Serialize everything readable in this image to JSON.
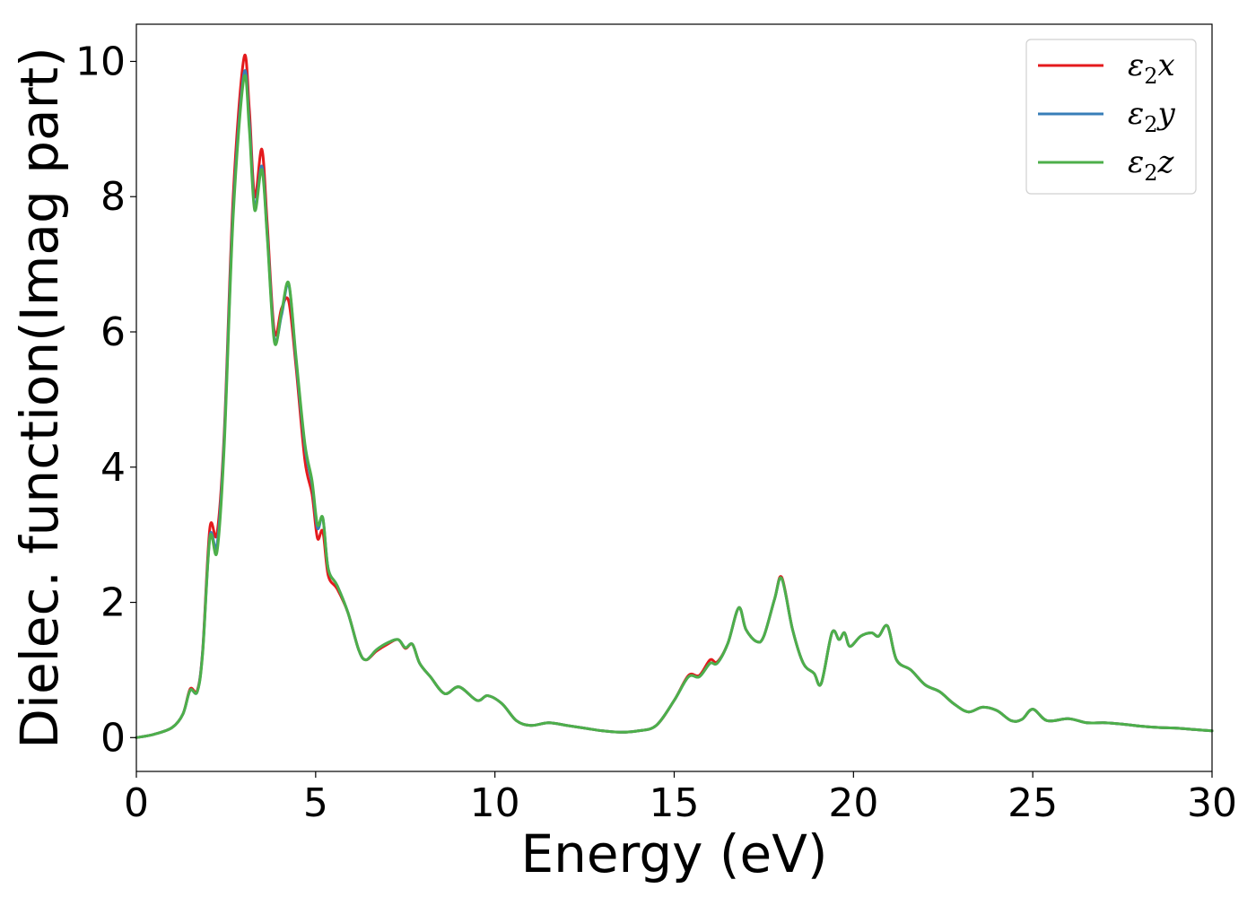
{
  "chart_data": {
    "type": "line",
    "xlabel": "Energy (eV)",
    "ylabel": "Dielec. function(Imag part)",
    "xlim": [
      0,
      30
    ],
    "ylim": [
      -0.5,
      10.55
    ],
    "xticks": [
      0,
      5,
      10,
      15,
      20,
      25,
      30
    ],
    "yticks": [
      0,
      2,
      4,
      6,
      8,
      10
    ],
    "grid": false,
    "legend_position": "top-right",
    "series": [
      {
        "name": "ε2x",
        "legend": {
          "base": "ε",
          "sub": "2",
          "suffix": "x"
        },
        "color": "#e41a1c",
        "points": [
          [
            0,
            0
          ],
          [
            0.5,
            0.05
          ],
          [
            1.0,
            0.15
          ],
          [
            1.3,
            0.35
          ],
          [
            1.5,
            0.72
          ],
          [
            1.7,
            0.7
          ],
          [
            1.85,
            1.3
          ],
          [
            2.05,
            3.1
          ],
          [
            2.25,
            3.02
          ],
          [
            2.45,
            4.5
          ],
          [
            2.7,
            8.0
          ],
          [
            3.0,
            10.05
          ],
          [
            3.15,
            9.3
          ],
          [
            3.3,
            8.0
          ],
          [
            3.5,
            8.7
          ],
          [
            3.65,
            7.6
          ],
          [
            3.85,
            6.0
          ],
          [
            4.05,
            6.35
          ],
          [
            4.25,
            6.45
          ],
          [
            4.45,
            5.5
          ],
          [
            4.7,
            4.1
          ],
          [
            4.9,
            3.6
          ],
          [
            5.05,
            2.95
          ],
          [
            5.2,
            3.05
          ],
          [
            5.35,
            2.4
          ],
          [
            5.6,
            2.2
          ],
          [
            5.9,
            1.85
          ],
          [
            6.2,
            1.3
          ],
          [
            6.4,
            1.15
          ],
          [
            6.7,
            1.28
          ],
          [
            7.0,
            1.38
          ],
          [
            7.3,
            1.45
          ],
          [
            7.5,
            1.32
          ],
          [
            7.7,
            1.38
          ],
          [
            7.9,
            1.1
          ],
          [
            8.2,
            0.9
          ],
          [
            8.6,
            0.65
          ],
          [
            9.0,
            0.75
          ],
          [
            9.5,
            0.55
          ],
          [
            9.8,
            0.62
          ],
          [
            10.2,
            0.5
          ],
          [
            10.6,
            0.25
          ],
          [
            11.0,
            0.18
          ],
          [
            11.5,
            0.22
          ],
          [
            12.0,
            0.18
          ],
          [
            12.5,
            0.14
          ],
          [
            13.0,
            0.1
          ],
          [
            13.5,
            0.08
          ],
          [
            14.0,
            0.1
          ],
          [
            14.5,
            0.18
          ],
          [
            15.0,
            0.55
          ],
          [
            15.4,
            0.92
          ],
          [
            15.7,
            0.92
          ],
          [
            16.0,
            1.15
          ],
          [
            16.2,
            1.12
          ],
          [
            16.5,
            1.4
          ],
          [
            16.8,
            1.92
          ],
          [
            17.0,
            1.6
          ],
          [
            17.3,
            1.42
          ],
          [
            17.5,
            1.5
          ],
          [
            17.8,
            2.05
          ],
          [
            18.0,
            2.37
          ],
          [
            18.3,
            1.6
          ],
          [
            18.6,
            1.1
          ],
          [
            18.9,
            0.95
          ],
          [
            19.1,
            0.8
          ],
          [
            19.4,
            1.55
          ],
          [
            19.6,
            1.45
          ],
          [
            19.75,
            1.55
          ],
          [
            19.9,
            1.35
          ],
          [
            20.2,
            1.5
          ],
          [
            20.5,
            1.55
          ],
          [
            20.7,
            1.5
          ],
          [
            20.95,
            1.65
          ],
          [
            21.2,
            1.15
          ],
          [
            21.6,
            1.0
          ],
          [
            22.0,
            0.78
          ],
          [
            22.4,
            0.68
          ],
          [
            22.8,
            0.5
          ],
          [
            23.2,
            0.38
          ],
          [
            23.6,
            0.45
          ],
          [
            24.0,
            0.4
          ],
          [
            24.4,
            0.25
          ],
          [
            24.7,
            0.27
          ],
          [
            25.0,
            0.42
          ],
          [
            25.4,
            0.25
          ],
          [
            26.0,
            0.28
          ],
          [
            26.5,
            0.22
          ],
          [
            27.0,
            0.22
          ],
          [
            27.5,
            0.2
          ],
          [
            28.0,
            0.17
          ],
          [
            28.5,
            0.15
          ],
          [
            29.0,
            0.14
          ],
          [
            29.5,
            0.12
          ],
          [
            30.0,
            0.1
          ]
        ]
      },
      {
        "name": "ε2y",
        "legend": {
          "base": "ε",
          "sub": "2",
          "suffix": "y"
        },
        "color": "#377eb8",
        "points": [
          [
            0,
            0
          ],
          [
            0.5,
            0.05
          ],
          [
            1.0,
            0.15
          ],
          [
            1.3,
            0.35
          ],
          [
            1.5,
            0.7
          ],
          [
            1.7,
            0.68
          ],
          [
            1.85,
            1.28
          ],
          [
            2.05,
            2.97
          ],
          [
            2.25,
            2.85
          ],
          [
            2.45,
            4.4
          ],
          [
            2.7,
            7.8
          ],
          [
            3.0,
            9.82
          ],
          [
            3.15,
            9.1
          ],
          [
            3.3,
            7.85
          ],
          [
            3.5,
            8.45
          ],
          [
            3.65,
            7.45
          ],
          [
            3.85,
            5.9
          ],
          [
            4.05,
            6.25
          ],
          [
            4.25,
            6.7
          ],
          [
            4.45,
            5.6
          ],
          [
            4.7,
            4.3
          ],
          [
            4.9,
            3.75
          ],
          [
            5.05,
            3.1
          ],
          [
            5.2,
            3.25
          ],
          [
            5.35,
            2.5
          ],
          [
            5.6,
            2.25
          ],
          [
            5.9,
            1.85
          ],
          [
            6.2,
            1.3
          ],
          [
            6.4,
            1.15
          ],
          [
            6.7,
            1.3
          ],
          [
            7.0,
            1.4
          ],
          [
            7.3,
            1.45
          ],
          [
            7.5,
            1.33
          ],
          [
            7.7,
            1.38
          ],
          [
            7.9,
            1.1
          ],
          [
            8.2,
            0.9
          ],
          [
            8.6,
            0.65
          ],
          [
            9.0,
            0.75
          ],
          [
            9.5,
            0.55
          ],
          [
            9.8,
            0.62
          ],
          [
            10.2,
            0.5
          ],
          [
            10.6,
            0.25
          ],
          [
            11.0,
            0.18
          ],
          [
            11.5,
            0.22
          ],
          [
            12.0,
            0.18
          ],
          [
            12.5,
            0.14
          ],
          [
            13.0,
            0.1
          ],
          [
            13.5,
            0.08
          ],
          [
            14.0,
            0.1
          ],
          [
            14.5,
            0.18
          ],
          [
            15.0,
            0.55
          ],
          [
            15.4,
            0.9
          ],
          [
            15.7,
            0.9
          ],
          [
            16.0,
            1.1
          ],
          [
            16.2,
            1.1
          ],
          [
            16.5,
            1.4
          ],
          [
            16.8,
            1.92
          ],
          [
            17.0,
            1.6
          ],
          [
            17.3,
            1.42
          ],
          [
            17.5,
            1.5
          ],
          [
            17.8,
            2.05
          ],
          [
            18.0,
            2.35
          ],
          [
            18.3,
            1.6
          ],
          [
            18.6,
            1.1
          ],
          [
            18.9,
            0.95
          ],
          [
            19.1,
            0.8
          ],
          [
            19.4,
            1.55
          ],
          [
            19.6,
            1.45
          ],
          [
            19.75,
            1.55
          ],
          [
            19.9,
            1.35
          ],
          [
            20.2,
            1.5
          ],
          [
            20.5,
            1.55
          ],
          [
            20.7,
            1.5
          ],
          [
            20.95,
            1.65
          ],
          [
            21.2,
            1.15
          ],
          [
            21.6,
            1.0
          ],
          [
            22.0,
            0.78
          ],
          [
            22.4,
            0.68
          ],
          [
            22.8,
            0.5
          ],
          [
            23.2,
            0.38
          ],
          [
            23.6,
            0.45
          ],
          [
            24.0,
            0.4
          ],
          [
            24.4,
            0.25
          ],
          [
            24.7,
            0.27
          ],
          [
            25.0,
            0.42
          ],
          [
            25.4,
            0.25
          ],
          [
            26.0,
            0.28
          ],
          [
            26.5,
            0.22
          ],
          [
            27.0,
            0.22
          ],
          [
            27.5,
            0.2
          ],
          [
            28.0,
            0.17
          ],
          [
            28.5,
            0.15
          ],
          [
            29.0,
            0.14
          ],
          [
            29.5,
            0.12
          ],
          [
            30.0,
            0.1
          ]
        ]
      },
      {
        "name": "ε2z",
        "legend": {
          "base": "ε",
          "sub": "2",
          "suffix": "z"
        },
        "color": "#4daf4a",
        "points": [
          [
            0,
            0
          ],
          [
            0.5,
            0.05
          ],
          [
            1.0,
            0.15
          ],
          [
            1.3,
            0.35
          ],
          [
            1.5,
            0.7
          ],
          [
            1.7,
            0.68
          ],
          [
            1.85,
            1.25
          ],
          [
            2.05,
            2.95
          ],
          [
            2.25,
            2.75
          ],
          [
            2.45,
            4.3
          ],
          [
            2.7,
            7.7
          ],
          [
            3.0,
            9.75
          ],
          [
            3.15,
            9.0
          ],
          [
            3.3,
            7.8
          ],
          [
            3.5,
            8.4
          ],
          [
            3.65,
            7.4
          ],
          [
            3.85,
            5.85
          ],
          [
            4.05,
            6.3
          ],
          [
            4.25,
            6.72
          ],
          [
            4.45,
            5.65
          ],
          [
            4.7,
            4.35
          ],
          [
            4.9,
            3.8
          ],
          [
            5.05,
            3.15
          ],
          [
            5.2,
            3.25
          ],
          [
            5.35,
            2.5
          ],
          [
            5.6,
            2.25
          ],
          [
            5.9,
            1.85
          ],
          [
            6.2,
            1.3
          ],
          [
            6.4,
            1.15
          ],
          [
            6.7,
            1.3
          ],
          [
            7.0,
            1.4
          ],
          [
            7.3,
            1.45
          ],
          [
            7.5,
            1.33
          ],
          [
            7.7,
            1.38
          ],
          [
            7.9,
            1.1
          ],
          [
            8.2,
            0.9
          ],
          [
            8.6,
            0.65
          ],
          [
            9.0,
            0.75
          ],
          [
            9.5,
            0.55
          ],
          [
            9.8,
            0.62
          ],
          [
            10.2,
            0.5
          ],
          [
            10.6,
            0.25
          ],
          [
            11.0,
            0.18
          ],
          [
            11.5,
            0.22
          ],
          [
            12.0,
            0.18
          ],
          [
            12.5,
            0.14
          ],
          [
            13.0,
            0.1
          ],
          [
            13.5,
            0.08
          ],
          [
            14.0,
            0.1
          ],
          [
            14.5,
            0.18
          ],
          [
            15.0,
            0.55
          ],
          [
            15.4,
            0.9
          ],
          [
            15.7,
            0.9
          ],
          [
            16.0,
            1.1
          ],
          [
            16.2,
            1.1
          ],
          [
            16.5,
            1.4
          ],
          [
            16.8,
            1.92
          ],
          [
            17.0,
            1.6
          ],
          [
            17.3,
            1.42
          ],
          [
            17.5,
            1.5
          ],
          [
            17.8,
            2.05
          ],
          [
            18.0,
            2.35
          ],
          [
            18.3,
            1.6
          ],
          [
            18.6,
            1.1
          ],
          [
            18.9,
            0.95
          ],
          [
            19.1,
            0.8
          ],
          [
            19.4,
            1.55
          ],
          [
            19.6,
            1.45
          ],
          [
            19.75,
            1.55
          ],
          [
            19.9,
            1.35
          ],
          [
            20.2,
            1.5
          ],
          [
            20.5,
            1.55
          ],
          [
            20.7,
            1.5
          ],
          [
            20.95,
            1.65
          ],
          [
            21.2,
            1.15
          ],
          [
            21.6,
            1.0
          ],
          [
            22.0,
            0.78
          ],
          [
            22.4,
            0.68
          ],
          [
            22.8,
            0.5
          ],
          [
            23.2,
            0.38
          ],
          [
            23.6,
            0.45
          ],
          [
            24.0,
            0.4
          ],
          [
            24.4,
            0.25
          ],
          [
            24.7,
            0.27
          ],
          [
            25.0,
            0.42
          ],
          [
            25.4,
            0.25
          ],
          [
            26.0,
            0.28
          ],
          [
            26.5,
            0.22
          ],
          [
            27.0,
            0.22
          ],
          [
            27.5,
            0.2
          ],
          [
            28.0,
            0.17
          ],
          [
            28.5,
            0.15
          ],
          [
            29.0,
            0.14
          ],
          [
            29.5,
            0.12
          ],
          [
            30.0,
            0.1
          ]
        ]
      }
    ]
  }
}
